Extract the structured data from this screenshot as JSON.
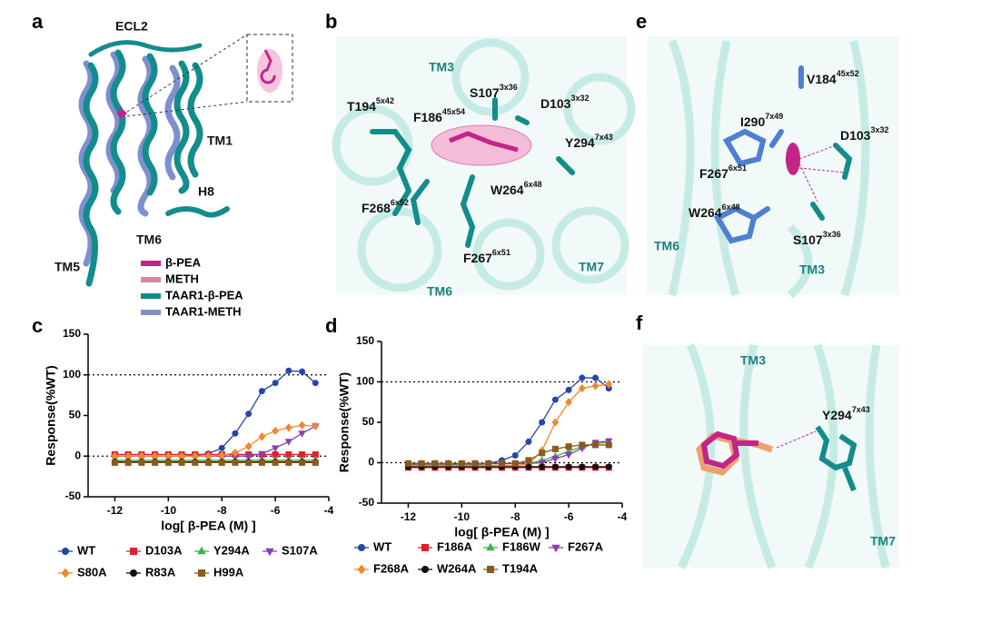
{
  "panels": {
    "a": {
      "letter": "a",
      "labels": [
        {
          "name": "ECL2"
        },
        {
          "name": "TM1"
        },
        {
          "name": "H8"
        },
        {
          "name": "TM6"
        },
        {
          "name": "TM5"
        }
      ],
      "legend": [
        {
          "name": "β-PEA",
          "color": "#c2248a"
        },
        {
          "name": "METH",
          "color": "#d48a9a"
        },
        {
          "name": "TAAR1-β-PEA",
          "color": "#138c8c"
        },
        {
          "name": "TAAR1-METH",
          "color": "#7f8fce"
        }
      ]
    },
    "b": {
      "letter": "b",
      "labels": [
        {
          "name": "TM3"
        },
        {
          "name": "S107",
          "sup": "3x36"
        },
        {
          "name": "D103",
          "sup": "3x32"
        },
        {
          "name": "T194",
          "sup": "5x42"
        },
        {
          "name": "F186",
          "sup": "45x54"
        },
        {
          "name": "Y294",
          "sup": "7x43"
        },
        {
          "name": "W264",
          "sup": "6x48"
        },
        {
          "name": "F268",
          "sup": "6x52"
        },
        {
          "name": "F267",
          "sup": "6x51"
        },
        {
          "name": "TM7"
        },
        {
          "name": "TM6"
        }
      ]
    },
    "e": {
      "letter": "e",
      "labels": [
        {
          "name": "V184",
          "sup": "45x52"
        },
        {
          "name": "I290",
          "sup": "7x49"
        },
        {
          "name": "D103",
          "sup": "3x32"
        },
        {
          "name": "F267",
          "sup": "6x51"
        },
        {
          "name": "W264",
          "sup": "6x48"
        },
        {
          "name": "S107",
          "sup": "3x36"
        },
        {
          "name": "TM6"
        },
        {
          "name": "TM3"
        }
      ]
    },
    "f": {
      "letter": "f",
      "labels": [
        {
          "name": "TM3"
        },
        {
          "name": "Y294",
          "sup": "7x43"
        },
        {
          "name": "TM7"
        }
      ]
    }
  },
  "chart_data": [
    {
      "type": "line",
      "panel_label": "c",
      "y_label": "Response(%WT)",
      "x_label": "log[ β-PEA (M) ]",
      "xlim": [
        -13,
        -4
      ],
      "xticks": [
        -12,
        -10,
        -8,
        -6,
        -4
      ],
      "ylim": [
        -50,
        150
      ],
      "yticks": [
        -50,
        0,
        50,
        100,
        150
      ],
      "ref_lines": [
        0,
        100
      ],
      "x": [
        -12,
        -11.5,
        -11,
        -10.5,
        -10,
        -9.5,
        -9,
        -8.5,
        -8,
        -7.5,
        -7,
        -6.5,
        -6,
        -5.5,
        -5,
        -4.5
      ],
      "series": [
        {
          "name": "WT",
          "color": "#2447a8",
          "marker": "circle",
          "values": [
            0,
            0,
            0,
            0,
            0,
            0,
            1,
            3,
            10,
            28,
            52,
            80,
            90,
            105,
            104,
            90
          ]
        },
        {
          "name": "D103A",
          "color": "#e0202a",
          "marker": "square",
          "values": [
            2,
            2,
            2,
            2,
            2,
            2,
            2,
            2,
            2,
            2,
            2,
            2,
            2,
            2,
            2,
            2
          ]
        },
        {
          "name": "Y294A",
          "color": "#3cb44b",
          "marker": "triangle",
          "values": [
            -5,
            -5,
            -5,
            -5,
            -5,
            -5,
            -5,
            -5,
            -5,
            -5,
            -5,
            -5,
            -5,
            -5,
            -5,
            -5
          ]
        },
        {
          "name": "S107A",
          "color": "#8b3fb5",
          "marker": "triangle-down",
          "values": [
            0,
            0,
            0,
            0,
            0,
            0,
            0,
            0,
            0,
            0,
            0,
            3,
            10,
            18,
            28,
            37
          ]
        },
        {
          "name": "S80A",
          "color": "#f0892d",
          "marker": "diamond",
          "values": [
            0,
            0,
            0,
            0,
            0,
            0,
            0,
            0,
            1,
            4,
            12,
            24,
            31,
            35,
            38,
            37
          ]
        },
        {
          "name": "R83A",
          "color": "#111111",
          "marker": "circle",
          "values": [
            -7,
            -7,
            -7,
            -7,
            -7,
            -7,
            -7,
            -7,
            -7,
            -7,
            -7,
            -7,
            -7,
            -7,
            -7,
            -7
          ]
        },
        {
          "name": "H99A",
          "color": "#8a5a1e",
          "marker": "square",
          "values": [
            -8,
            -8,
            -8,
            -8,
            -8,
            -8,
            -8,
            -8,
            -8,
            -8,
            -8,
            -8,
            -8,
            -8,
            -8,
            -8
          ]
        }
      ]
    },
    {
      "type": "line",
      "panel_label": "d",
      "y_label": "Response(%WT)",
      "x_label": "log[ β-PEA (M) ]",
      "xlim": [
        -13,
        -4
      ],
      "xticks": [
        -12,
        -10,
        -8,
        -6,
        -4
      ],
      "ylim": [
        -50,
        150
      ],
      "yticks": [
        -50,
        0,
        50,
        100,
        150
      ],
      "ref_lines": [
        0,
        100
      ],
      "x": [
        -12,
        -11.5,
        -11,
        -10.5,
        -10,
        -9.5,
        -9,
        -8.5,
        -8,
        -7.5,
        -7,
        -6.5,
        -6,
        -5.5,
        -5,
        -4.5
      ],
      "series": [
        {
          "name": "WT",
          "color": "#2447a8",
          "marker": "circle",
          "values": [
            -2,
            -2,
            -2,
            -2,
            -2,
            -2,
            -1,
            3,
            9,
            26,
            50,
            78,
            90,
            105,
            105,
            92
          ]
        },
        {
          "name": "F186A",
          "color": "#e0202a",
          "marker": "square",
          "values": [
            -6,
            -6,
            -6,
            -6,
            -6,
            -6,
            -6,
            -6,
            -6,
            -6,
            -6,
            -6,
            -6,
            -6,
            -6,
            -6
          ]
        },
        {
          "name": "F186W",
          "color": "#3cb44b",
          "marker": "triangle",
          "values": [
            -1,
            -1,
            -1,
            -1,
            -1,
            -1,
            -1,
            -1,
            -1,
            -1,
            3,
            8,
            14,
            20,
            24,
            25
          ]
        },
        {
          "name": "F267A",
          "color": "#8b3fb5",
          "marker": "triangle-down",
          "values": [
            -1,
            -1,
            -1,
            -1,
            -1,
            -1,
            -1,
            -1,
            -1,
            -1,
            0,
            5,
            10,
            18,
            25,
            27
          ]
        },
        {
          "name": "F268A",
          "color": "#f0892d",
          "marker": "diamond",
          "values": [
            -3,
            -3,
            -3,
            -3,
            -3,
            -3,
            -3,
            -3,
            -3,
            -2,
            15,
            50,
            75,
            92,
            95,
            97
          ]
        },
        {
          "name": "W264A",
          "color": "#111111",
          "marker": "circle",
          "values": [
            -5,
            -5,
            -5,
            -5,
            -5,
            -5,
            -5,
            -5,
            -5,
            -5,
            -5,
            -5,
            -5,
            -5,
            -5,
            -5
          ]
        },
        {
          "name": "T194A",
          "color": "#8a5a1e",
          "marker": "square",
          "values": [
            -1,
            -1,
            -1,
            -1,
            -1,
            -1,
            -1,
            -1,
            -1,
            3,
            12,
            17,
            20,
            22,
            22,
            22
          ]
        }
      ]
    }
  ]
}
